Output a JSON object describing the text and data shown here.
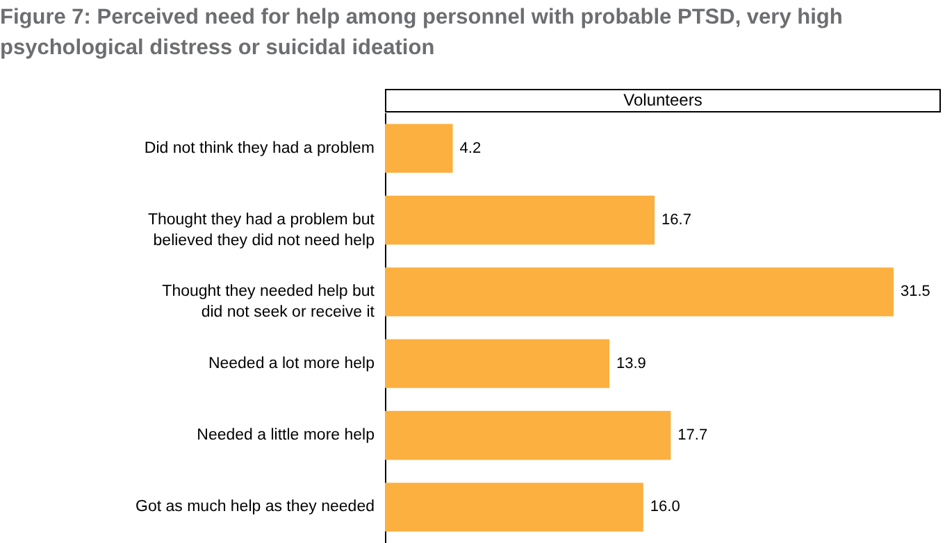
{
  "chart_data": {
    "type": "bar",
    "orientation": "horizontal",
    "title": "Figure 7: Perceived need for help among personnel with probable PTSD, very high psychological distress or suicidal ideation",
    "subtitle": "Volunteers",
    "categories": [
      "Did not think they had a problem",
      "Thought they had a problem but believed they did not need help",
      "Thought they needed help but did not seek or receive it",
      "Needed a lot more help",
      "Needed a little more help",
      "Got as much help as they needed"
    ],
    "values": [
      4.2,
      16.7,
      31.5,
      13.9,
      17.7,
      16.0
    ],
    "value_labels": [
      "4.2",
      "16.7",
      "31.5",
      "13.9",
      "17.7",
      "16.0"
    ],
    "color": "#fbb040",
    "tick_labels": "y"
  }
}
